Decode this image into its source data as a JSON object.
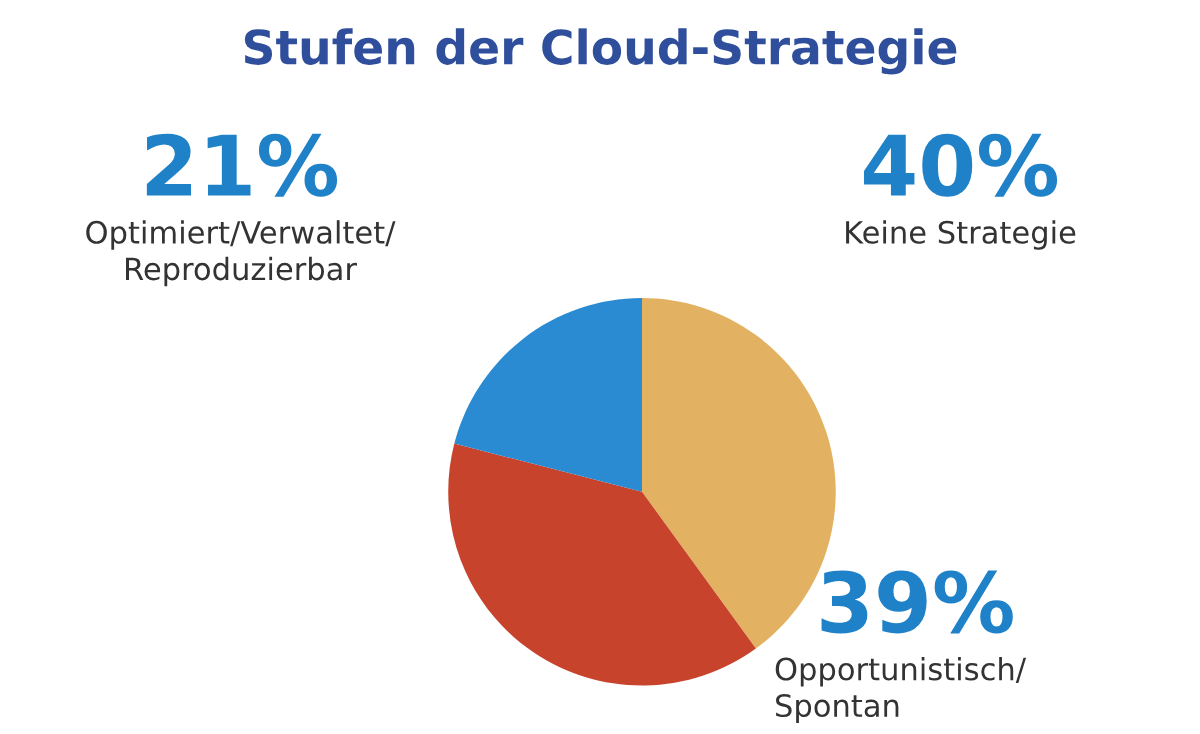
{
  "chart_data": {
    "type": "pie",
    "title": "Stufen der Cloud-Strategie",
    "categories": [
      "Keine Strategie",
      "Opportunistisch/\nSpontan",
      "Optimiert/Verwaltet/\nReproduzierbar"
    ],
    "values": [
      40,
      39,
      21
    ],
    "colors": [
      "#e2b262",
      "#c8432b",
      "#2a8bd3"
    ],
    "value_labels": [
      "40%",
      "39%",
      "21%"
    ]
  }
}
